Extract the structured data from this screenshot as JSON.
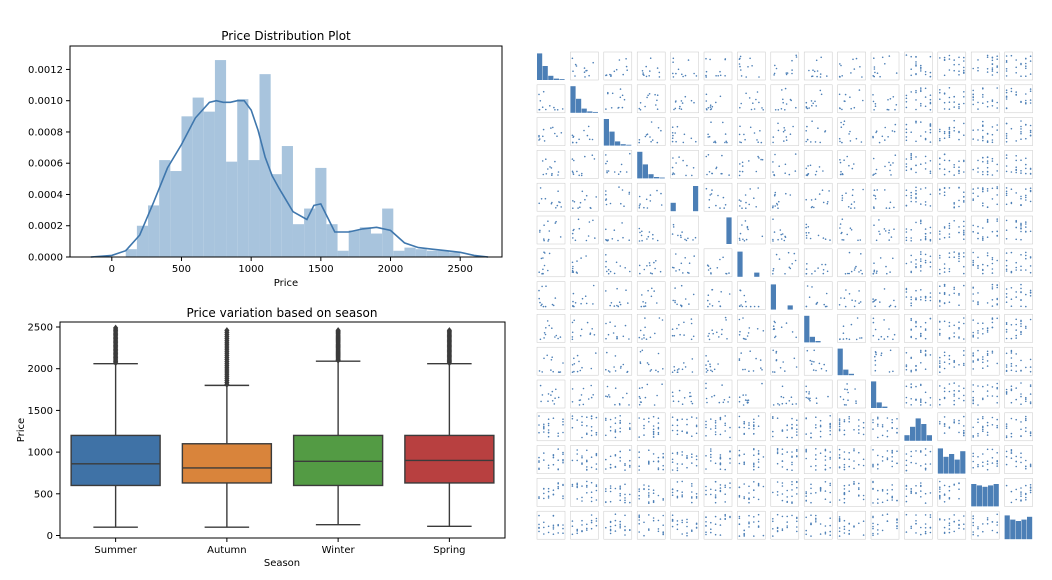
{
  "colors": {
    "hist_fill": "#a8c4dd",
    "kde_line": "#3f77ad",
    "axis": "#000000",
    "box_summer": "#3f72a6",
    "box_autumn": "#d9843b",
    "box_winter": "#539b44",
    "box_spring": "#b84040",
    "whisker": "#3b3b3b",
    "pair_point": "#4c7fb6",
    "pair_frame": "#c8c8c8"
  },
  "chart_data": [
    {
      "type": "bar",
      "subtype": "histogram-with-kde",
      "title": "Price Distribution Plot",
      "xlabel": "Price",
      "ylabel": "",
      "xlim": [
        -300,
        2800
      ],
      "ylim": [
        0,
        0.00135
      ],
      "xticks": [
        0,
        500,
        1000,
        1500,
        2000,
        2500
      ],
      "xtick_labels": [
        "0",
        "500",
        "1000",
        "1500",
        "2000",
        "2500"
      ],
      "yticks": [
        0,
        0.0002,
        0.0004,
        0.0006,
        0.0008,
        0.001,
        0.0012
      ],
      "ytick_labels": [
        "0.0000",
        "0.0002",
        "0.0004",
        "0.0006",
        "0.0008",
        "0.0010",
        "0.0012"
      ],
      "bins": [
        {
          "x0": 100,
          "x1": 180,
          "density": 5e-05
        },
        {
          "x0": 180,
          "x1": 260,
          "density": 0.0002
        },
        {
          "x0": 260,
          "x1": 340,
          "density": 0.00033
        },
        {
          "x0": 340,
          "x1": 420,
          "density": 0.00062
        },
        {
          "x0": 420,
          "x1": 500,
          "density": 0.00055
        },
        {
          "x0": 500,
          "x1": 580,
          "density": 0.0009
        },
        {
          "x0": 580,
          "x1": 660,
          "density": 0.00102
        },
        {
          "x0": 660,
          "x1": 740,
          "density": 0.00093
        },
        {
          "x0": 740,
          "x1": 820,
          "density": 0.00126
        },
        {
          "x0": 820,
          "x1": 900,
          "density": 0.00061
        },
        {
          "x0": 900,
          "x1": 980,
          "density": 0.00101
        },
        {
          "x0": 980,
          "x1": 1060,
          "density": 0.00062
        },
        {
          "x0": 1060,
          "x1": 1140,
          "density": 0.00117
        },
        {
          "x0": 1140,
          "x1": 1220,
          "density": 0.00053
        },
        {
          "x0": 1220,
          "x1": 1300,
          "density": 0.00071
        },
        {
          "x0": 1300,
          "x1": 1380,
          "density": 0.00021
        },
        {
          "x0": 1380,
          "x1": 1460,
          "density": 0.00031
        },
        {
          "x0": 1460,
          "x1": 1540,
          "density": 0.00057
        },
        {
          "x0": 1540,
          "x1": 1620,
          "density": 0.00021
        },
        {
          "x0": 1620,
          "x1": 1700,
          "density": 4e-05
        },
        {
          "x0": 1700,
          "x1": 1780,
          "density": 0.00017
        },
        {
          "x0": 1780,
          "x1": 1860,
          "density": 0.00019
        },
        {
          "x0": 1860,
          "x1": 1940,
          "density": 0.00015
        },
        {
          "x0": 1940,
          "x1": 2020,
          "density": 0.00031
        },
        {
          "x0": 2020,
          "x1": 2100,
          "density": 4e-05
        },
        {
          "x0": 2100,
          "x1": 2180,
          "density": 6e-05
        },
        {
          "x0": 2180,
          "x1": 2260,
          "density": 5e-05
        },
        {
          "x0": 2260,
          "x1": 2340,
          "density": 4e-05
        },
        {
          "x0": 2340,
          "x1": 2420,
          "density": 4e-05
        },
        {
          "x0": 2420,
          "x1": 2500,
          "density": 3e-05
        }
      ],
      "kde": {
        "x": [
          -150,
          0,
          100,
          200,
          300,
          400,
          500,
          600,
          700,
          750,
          800,
          850,
          900,
          950,
          1000,
          1050,
          1100,
          1150,
          1200,
          1300,
          1400,
          1450,
          1500,
          1550,
          1600,
          1700,
          1800,
          1900,
          2000,
          2100,
          2200,
          2300,
          2400,
          2500,
          2600,
          2700
        ],
        "y": [
          0.0,
          1e-05,
          4e-05,
          0.00014,
          0.00035,
          0.00057,
          0.00072,
          0.00089,
          0.00099,
          0.001,
          0.00099,
          0.00099,
          0.001,
          0.001,
          0.00094,
          0.00081,
          0.00064,
          0.00052,
          0.00044,
          0.00029,
          0.00024,
          0.00033,
          0.00034,
          0.00025,
          0.00016,
          0.00016,
          0.00018,
          0.00019,
          0.00017,
          9e-05,
          6e-05,
          5e-05,
          4e-05,
          3e-05,
          1e-05,
          0.0
        ]
      }
    },
    {
      "type": "box",
      "title": "Price variation based on season",
      "xlabel": "Season",
      "ylabel": "Price",
      "ylim": [
        -30,
        2560
      ],
      "yticks": [
        0,
        500,
        1000,
        1500,
        2000,
        2500
      ],
      "ytick_labels": [
        "0",
        "500",
        "1000",
        "1500",
        "2000",
        "2500"
      ],
      "categories": [
        "Summer",
        "Autumn",
        "Winter",
        "Spring"
      ],
      "boxes": [
        {
          "name": "Summer",
          "min": 100,
          "q1": 600,
          "median": 860,
          "q3": 1200,
          "max": 2060,
          "outliers_from": 2070,
          "outliers_to": 2490
        },
        {
          "name": "Autumn",
          "min": 100,
          "q1": 630,
          "median": 810,
          "q3": 1100,
          "max": 1800,
          "outliers_from": 1810,
          "outliers_to": 2460
        },
        {
          "name": "Winter",
          "min": 130,
          "q1": 600,
          "median": 890,
          "q3": 1200,
          "max": 2090,
          "outliers_from": 2100,
          "outliers_to": 2460
        },
        {
          "name": "Spring",
          "min": 110,
          "q1": 630,
          "median": 900,
          "q3": 1200,
          "max": 2060,
          "outliers_from": 2070,
          "outliers_to": 2460
        }
      ]
    },
    {
      "type": "scatter",
      "subtype": "pair-plot-matrix",
      "grid": [
        15,
        15
      ],
      "note_labels_unreadable": true
    }
  ]
}
